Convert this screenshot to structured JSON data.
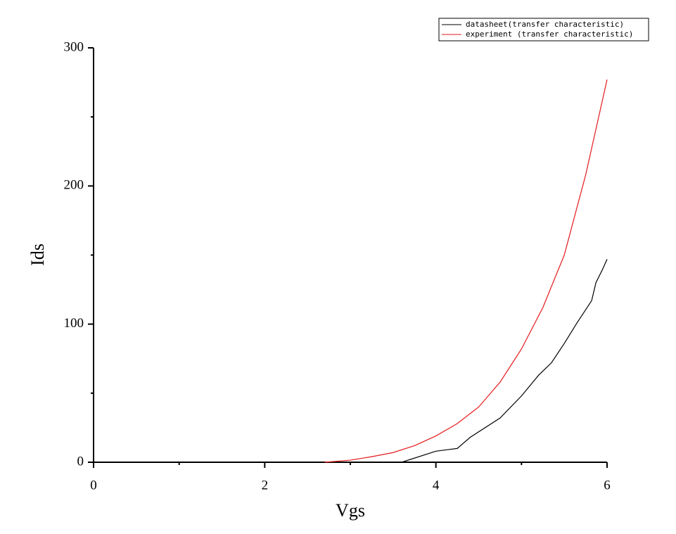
{
  "chart_data": {
    "type": "line",
    "x_label": "Vgs",
    "y_label": "Ids",
    "xlim": [
      0,
      6
    ],
    "ylim": [
      0,
      300
    ],
    "xticks": [
      0,
      2,
      4,
      6
    ],
    "yticks": [
      0,
      100,
      200,
      300
    ],
    "xminorticks": [
      1,
      3,
      5
    ],
    "yminorticks": [
      50,
      150,
      250
    ],
    "series": [
      {
        "name": "datasheet(transfer characteristic)",
        "color": "#000000",
        "x": [
          3.6,
          4.0,
          4.25,
          4.4,
          4.75,
          5.0,
          5.2,
          5.35,
          5.5,
          5.65,
          5.82,
          5.87,
          5.95,
          6.0
        ],
        "values": [
          0,
          8,
          10,
          18,
          32,
          48,
          63,
          72,
          86,
          101,
          117,
          130,
          140,
          147
        ]
      },
      {
        "name": "experiment (transfer characteristic)",
        "color": "#e41a1c",
        "x": [
          2.7,
          3.0,
          3.25,
          3.5,
          3.75,
          4.0,
          4.25,
          4.5,
          4.75,
          5.0,
          5.25,
          5.5,
          5.75,
          6.0
        ],
        "values": [
          0,
          1.5,
          4,
          7,
          12,
          19,
          28,
          40,
          58,
          82,
          112,
          150,
          208,
          277
        ]
      }
    ]
  }
}
